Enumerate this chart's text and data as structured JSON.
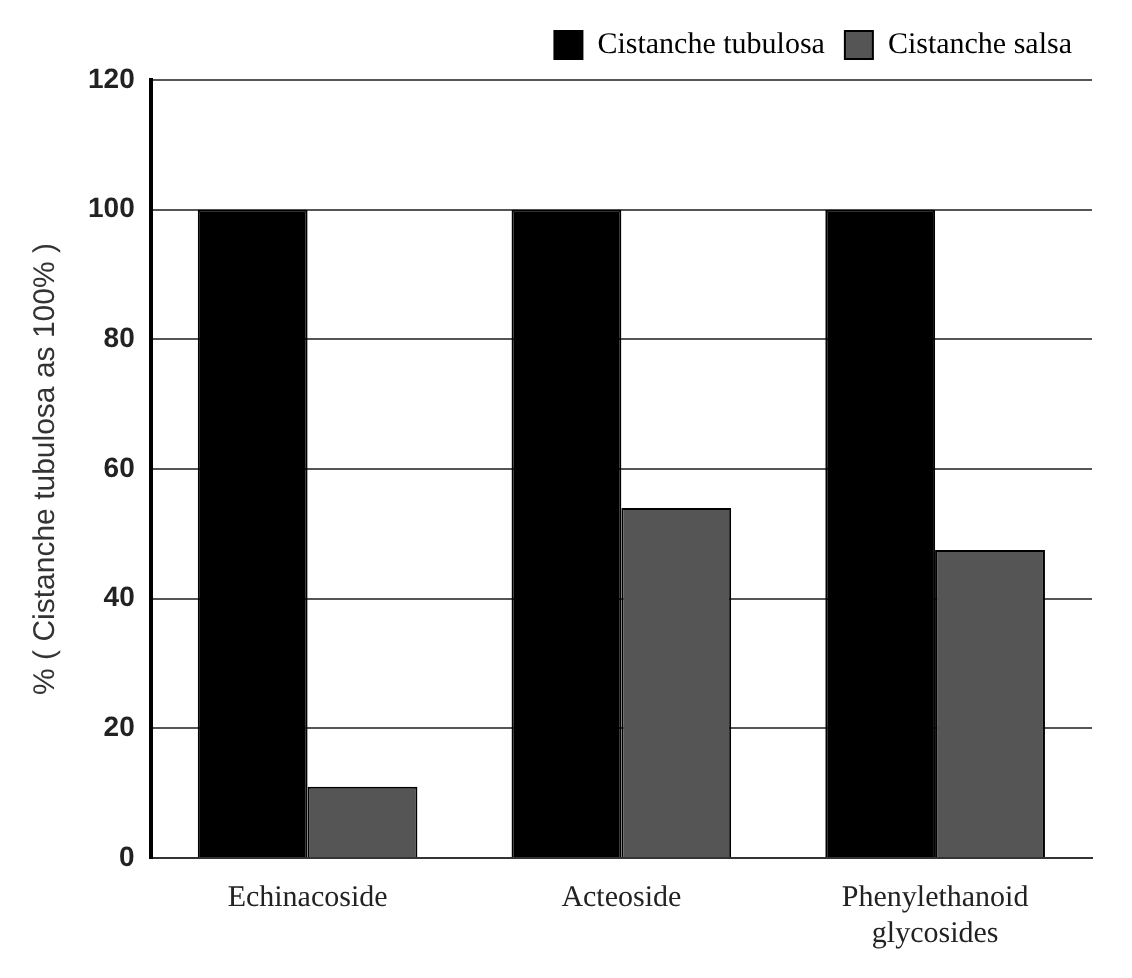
{
  "chart_data": {
    "type": "bar",
    "ylabel": "% ( Cistanche tubulosa as 100% )",
    "categories": [
      "Echinacoside",
      "Acteoside",
      "Phenylethanoid glycosides"
    ],
    "series": [
      {
        "name": "Cistanche tubulosa",
        "color": "#000000",
        "values": [
          100,
          100,
          100
        ]
      },
      {
        "name": "Cistanche salsa",
        "color": "#555555",
        "values": [
          11,
          54,
          47.5
        ]
      }
    ],
    "ylim": [
      0,
      120
    ],
    "yticks": [
      0,
      20,
      40,
      60,
      80,
      100,
      120
    ],
    "grid": "y",
    "legend": "top right"
  }
}
